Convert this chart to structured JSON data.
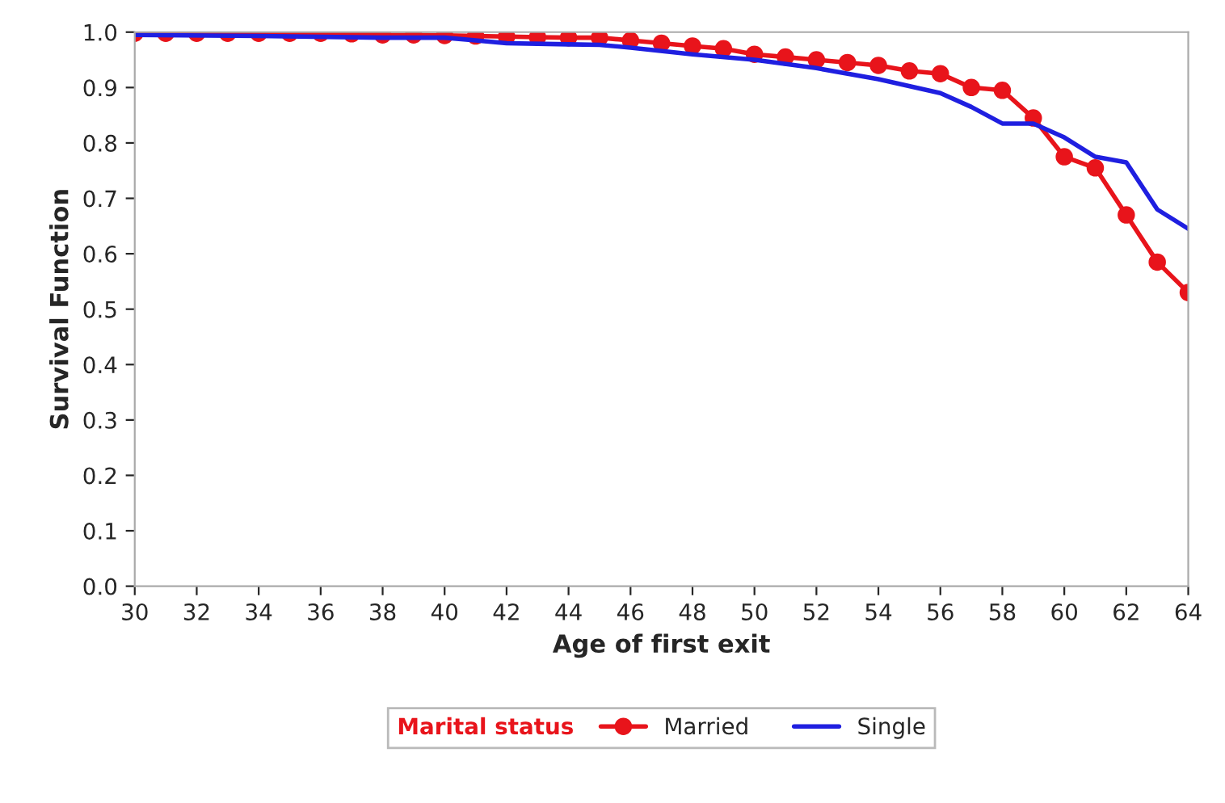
{
  "chart_data": {
    "type": "line",
    "xlabel": "Age of first exit",
    "ylabel": "Survival Function",
    "legend_title": "Marital status",
    "xlim": [
      30,
      64
    ],
    "xticks": [
      30,
      32,
      34,
      36,
      38,
      40,
      42,
      44,
      46,
      48,
      50,
      52,
      54,
      56,
      58,
      60,
      62,
      64
    ],
    "ylim": [
      0,
      1
    ],
    "yticks": [
      {
        "value": 0,
        "label": "0.0"
      },
      0.1,
      0.2,
      0.3,
      0.4,
      0.5,
      0.6,
      0.7,
      0.8,
      0.9,
      {
        "value": 1,
        "label": "1.0"
      }
    ],
    "grid": false,
    "legend": "bottom",
    "series": [
      {
        "name": "Married",
        "color": "#e8141b",
        "marker": "circle",
        "line_style": "solid",
        "x": [
          30,
          31,
          32,
          33,
          34,
          35,
          36,
          37,
          38,
          39,
          40,
          41,
          42,
          43,
          44,
          45,
          46,
          47,
          48,
          49,
          50,
          51,
          52,
          53,
          54,
          55,
          56,
          57,
          58,
          59,
          60,
          61,
          62,
          63,
          64
        ],
        "values": [
          0.998,
          0.998,
          0.998,
          0.998,
          0.998,
          0.998,
          0.998,
          0.997,
          0.995,
          0.995,
          0.994,
          0.993,
          0.992,
          0.991,
          0.99,
          0.99,
          0.985,
          0.98,
          0.975,
          0.97,
          0.96,
          0.955,
          0.95,
          0.945,
          0.94,
          0.93,
          0.925,
          0.9,
          0.895,
          0.845,
          0.775,
          0.755,
          0.67,
          0.585,
          0.53
        ]
      },
      {
        "name": "Single",
        "color": "#1f1fe0",
        "marker": "none",
        "line_style": "solid",
        "x": [
          30,
          34,
          38,
          40,
          41,
          42,
          44,
          45,
          46,
          48,
          50,
          52,
          54,
          56,
          57,
          58,
          59,
          60,
          61,
          62,
          63,
          64
        ],
        "values": [
          0.995,
          0.993,
          0.99,
          0.99,
          0.985,
          0.98,
          0.978,
          0.977,
          0.972,
          0.96,
          0.95,
          0.935,
          0.915,
          0.89,
          0.865,
          0.835,
          0.835,
          0.81,
          0.775,
          0.765,
          0.68,
          0.645
        ]
      }
    ]
  }
}
